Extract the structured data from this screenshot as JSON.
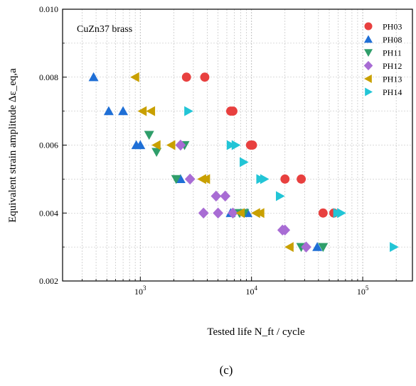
{
  "chart_data": {
    "type": "scatter",
    "title": "CuZn37 brass",
    "xlabel": "Tested life N_ft / cycle",
    "ylabel": "Equivalent strain amplitude Δε_eq,a",
    "xscale": "log",
    "xlim": [
      200,
      280000
    ],
    "ylim": [
      0.002,
      0.01
    ],
    "x_ticks": [
      1000,
      10000,
      100000
    ],
    "x_tick_labels": [
      "10^3",
      "10^4",
      "10^5"
    ],
    "y_ticks": [
      0.002,
      0.004,
      0.006,
      0.008,
      0.01
    ],
    "y_tick_labels": [
      "0.002",
      "0.004",
      "0.006",
      "0.008",
      "0.010"
    ],
    "grid": true,
    "legend_position": "top-right",
    "series": [
      {
        "name": "PH03",
        "marker": "circle",
        "color": "#e8403f",
        "points": [
          [
            2600,
            0.008
          ],
          [
            3800,
            0.008
          ],
          [
            6500,
            0.007
          ],
          [
            6800,
            0.007
          ],
          [
            9800,
            0.006
          ],
          [
            10200,
            0.006
          ],
          [
            20000,
            0.005
          ],
          [
            28000,
            0.005
          ],
          [
            44000,
            0.004
          ],
          [
            55000,
            0.004
          ]
        ]
      },
      {
        "name": "PH08",
        "marker": "triangle-up",
        "color": "#1f6fd6",
        "points": [
          [
            380,
            0.008
          ],
          [
            520,
            0.007
          ],
          [
            700,
            0.007
          ],
          [
            920,
            0.006
          ],
          [
            1000,
            0.006
          ],
          [
            2300,
            0.005
          ],
          [
            6500,
            0.004
          ],
          [
            9200,
            0.004
          ],
          [
            39000,
            0.003
          ]
        ]
      },
      {
        "name": "PH11",
        "marker": "triangle-down",
        "color": "#2f9e6a",
        "points": [
          [
            1200,
            0.0063
          ],
          [
            1400,
            0.0058
          ],
          [
            2100,
            0.005
          ],
          [
            2500,
            0.006
          ],
          [
            7800,
            0.004
          ],
          [
            8600,
            0.004
          ],
          [
            28000,
            0.003
          ],
          [
            44000,
            0.003
          ]
        ]
      },
      {
        "name": "PH12",
        "marker": "diamond",
        "color": "#a86cd4",
        "points": [
          [
            2300,
            0.006
          ],
          [
            2800,
            0.005
          ],
          [
            3700,
            0.004
          ],
          [
            4800,
            0.0045
          ],
          [
            5000,
            0.004
          ],
          [
            5800,
            0.0045
          ],
          [
            6800,
            0.004
          ],
          [
            19000,
            0.0035
          ],
          [
            20000,
            0.0035
          ],
          [
            31000,
            0.003
          ]
        ]
      },
      {
        "name": "PH13",
        "marker": "triangle-left",
        "color": "#c9a000",
        "points": [
          [
            900,
            0.008
          ],
          [
            1050,
            0.007
          ],
          [
            1250,
            0.007
          ],
          [
            1400,
            0.006
          ],
          [
            1900,
            0.006
          ],
          [
            3600,
            0.005
          ],
          [
            3900,
            0.005
          ],
          [
            8000,
            0.004
          ],
          [
            11000,
            0.004
          ],
          [
            12000,
            0.004
          ],
          [
            22000,
            0.003
          ]
        ]
      },
      {
        "name": "PH14",
        "marker": "triangle-right",
        "color": "#22c5d6",
        "points": [
          [
            2700,
            0.007
          ],
          [
            6500,
            0.006
          ],
          [
            7200,
            0.006
          ],
          [
            8500,
            0.0055
          ],
          [
            12000,
            0.005
          ],
          [
            13000,
            0.005
          ],
          [
            18000,
            0.0045
          ],
          [
            59000,
            0.004
          ],
          [
            64000,
            0.004
          ],
          [
            190000,
            0.003
          ]
        ]
      }
    ]
  },
  "caption": "(c)"
}
